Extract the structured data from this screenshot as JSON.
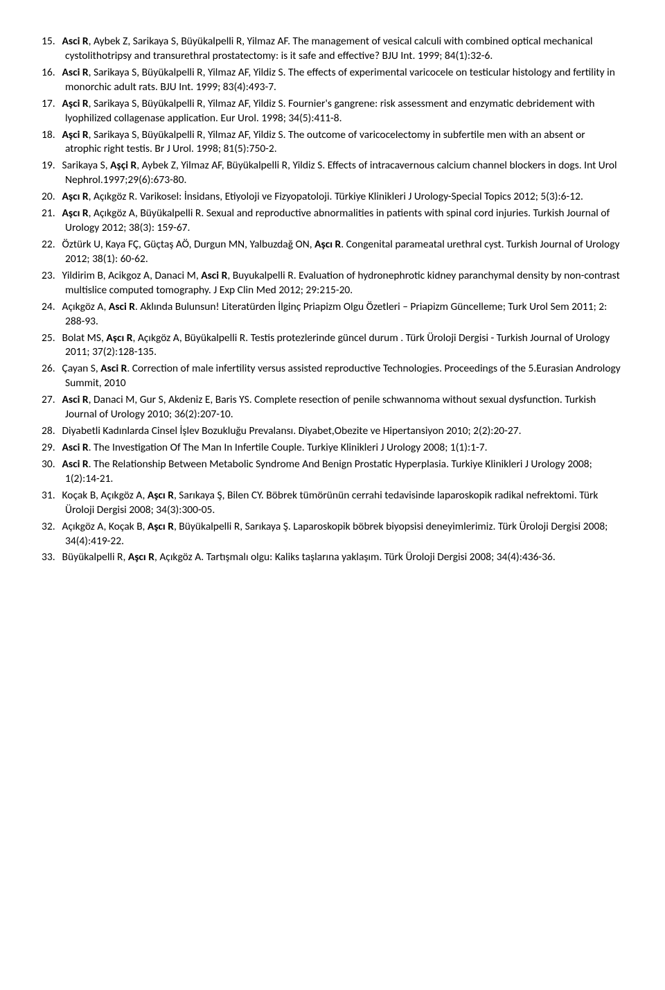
{
  "refs": [
    {
      "n": "15.",
      "parts": [
        {
          "b": true,
          "t": "Asci R"
        },
        {
          "t": ", Aybek Z, Sarikaya S, Büyükalpelli R, Yilmaz AF. The management of vesical calculi with combined optical mechanical cystolithotripsy and transurethral prostatectomy: is it safe and effective? BJU Int. 1999; 84(1):32-6."
        }
      ]
    },
    {
      "n": "16.",
      "parts": [
        {
          "b": true,
          "t": "Asci R"
        },
        {
          "t": ", Sarikaya S, Büyükalpelli R, Yilmaz AF, Yildiz S. The effects of experimental varicocele on testicular histology and fertility in monorchic adult rats. BJU Int. 1999; 83(4):493-7."
        }
      ]
    },
    {
      "n": "17.",
      "parts": [
        {
          "b": true,
          "t": "Aşci R"
        },
        {
          "t": ", Sarikaya S, Büyükalpelli R, Yilmaz AF, Yildiz S. Fournier's gangrene: risk assessment and enzymatic debridement with lyophilized collagenase application. Eur Urol. 1998; 34(5):411-8."
        }
      ]
    },
    {
      "n": "18.",
      "parts": [
        {
          "b": true,
          "t": "Aşci R"
        },
        {
          "t": ", Sarikaya S, Büyükalpelli R, Yilmaz AF, Yildiz S. The outcome of varicocelectomy in subfertile men with an absent or atrophic right testis. Br J Urol. 1998; 81(5):750-2."
        }
      ]
    },
    {
      "n": "19.",
      "parts": [
        {
          "t": "Sarikaya S, "
        },
        {
          "b": true,
          "t": "Aşçi R"
        },
        {
          "t": ", Aybek Z, Yilmaz AF, Büyükalpelli R, Yildiz S. Effects of intracavernous calcium channel blockers in dogs. Int Urol Nephrol.1997;29(6):673-80."
        }
      ]
    },
    {
      "n": "20.",
      "parts": [
        {
          "b": true,
          "t": "Aşcı R"
        },
        {
          "t": ", Açıkgöz R. Varikosel: İnsidans, Etiyoloji ve Fizyopatoloji. Türkiye Klinikleri J Urology-Special Topics 2012; 5(3):6-12."
        }
      ]
    },
    {
      "n": "21.",
      "parts": [
        {
          "b": true,
          "t": "Aşcı R"
        },
        {
          "t": ", Açıkgöz A, Büyükalpelli R. Sexual and reproductive abnormalities in patients with spinal cord injuries. Turkish Journal of Urology 2012; 38(3): 159-67."
        }
      ]
    },
    {
      "n": "22.",
      "parts": [
        {
          "t": "Öztürk U, Kaya FÇ, Güçtaş AÖ, Durgun MN, Yalbuzdağ ON, "
        },
        {
          "b": true,
          "t": "Aşcı R"
        },
        {
          "t": ". Congenital parameatal urethral cyst. Turkish Journal of Urology 2012; 38(1): 60-62."
        }
      ]
    },
    {
      "n": "23.",
      "parts": [
        {
          "t": "Yildirim B, Acikgoz A, Danaci M, "
        },
        {
          "b": true,
          "t": "Asci R"
        },
        {
          "t": ", Buyukalpelli R. Evaluation of hydronephrotic kidney paranchymal density by non-contrast multislice computed tomography. J Exp Clin Med 2012; 29:215-20."
        }
      ]
    },
    {
      "n": "24.",
      "parts": [
        {
          "t": "Açıkgöz A, "
        },
        {
          "b": true,
          "t": "Asci R"
        },
        {
          "t": ". Aklında Bulunsun! Literatürden İlginç Priapizm Olgu Özetleri – Priapizm Güncelleme; Turk Urol Sem 2011;  2: 288-93."
        }
      ]
    },
    {
      "n": "25.",
      "parts": [
        {
          "t": "Bolat MS, "
        },
        {
          "b": true,
          "t": "Aşcı R"
        },
        {
          "t": ", Açıkgöz A, Büyükalpelli R. Testis protezlerinde güncel durum . Türk Üroloji Dergisi - Turkish Journal of Urology 2011; 37(2):128-135."
        }
      ]
    },
    {
      "n": "26.",
      "parts": [
        {
          "t": "Çayan S, "
        },
        {
          "b": true,
          "t": "Asci R"
        },
        {
          "t": ". Correction of male infertility versus assisted reproductive Technologies. Proceedings of the 5.Eurasian Andrology Summit, 2010"
        }
      ]
    },
    {
      "n": "27.",
      "parts": [
        {
          "b": true,
          "t": "Asci R"
        },
        {
          "t": ", Danaci M, Gur S, Akdeniz E, Baris YS. Complete resection of penile schwannoma without sexual dysfunction. Turkish Journal of Urology 2010; 36(2):207-10."
        }
      ]
    },
    {
      "n": "28.",
      "parts": [
        {
          "t": "Diyabetli Kadınlarda Cinsel İşlev Bozukluğu Prevalansı. Diyabet,Obezite ve Hipertansiyon 2010; 2(2):20-27."
        }
      ]
    },
    {
      "n": "29.",
      "parts": [
        {
          "b": true,
          "t": "Asci R"
        },
        {
          "t": ". The Investigation Of The Man In Infertile Couple. Turkiye Klinikleri J Urology 2008; 1(1):1-7."
        }
      ]
    },
    {
      "n": "30.",
      "parts": [
        {
          "t": " "
        },
        {
          "b": true,
          "t": "Asci R"
        },
        {
          "t": ". The Relationship Between Metabolic Syndrome And Benign Prostatic Hyperplasia. Turkiye Klinikleri J Urology 2008; 1(2):14-21."
        }
      ]
    },
    {
      "n": "31.",
      "parts": [
        {
          "t": "Koçak B, Açıkgöz A, "
        },
        {
          "b": true,
          "t": "Aşcı R"
        },
        {
          "t": ", Sarıkaya Ş, Bilen CY. Böbrek tümörünün cerrahi tedavisinde laparoskopik radikal nefrektomi. Türk Üroloji Dergisi 2008; 34(3):300-05."
        }
      ]
    },
    {
      "n": "32.",
      "parts": [
        {
          "t": "Açıkgöz A, Koçak B, "
        },
        {
          "b": true,
          "t": "Aşcı R"
        },
        {
          "t": ", Büyükalpelli R, Sarıkaya Ş. Laparoskopik böbrek biyopsisi deneyimlerimiz. Türk Üroloji Dergisi 2008; 34(4):419-22."
        }
      ]
    },
    {
      "n": "33.",
      "parts": [
        {
          "t": "Büyükalpelli R, "
        },
        {
          "b": true,
          "t": "Aşcı R"
        },
        {
          "t": ", Açıkgöz A. Tartışmalı olgu: Kaliks taşlarına yaklaşım. Türk Üroloji Dergisi 2008; 34(4):436-36."
        }
      ]
    }
  ]
}
